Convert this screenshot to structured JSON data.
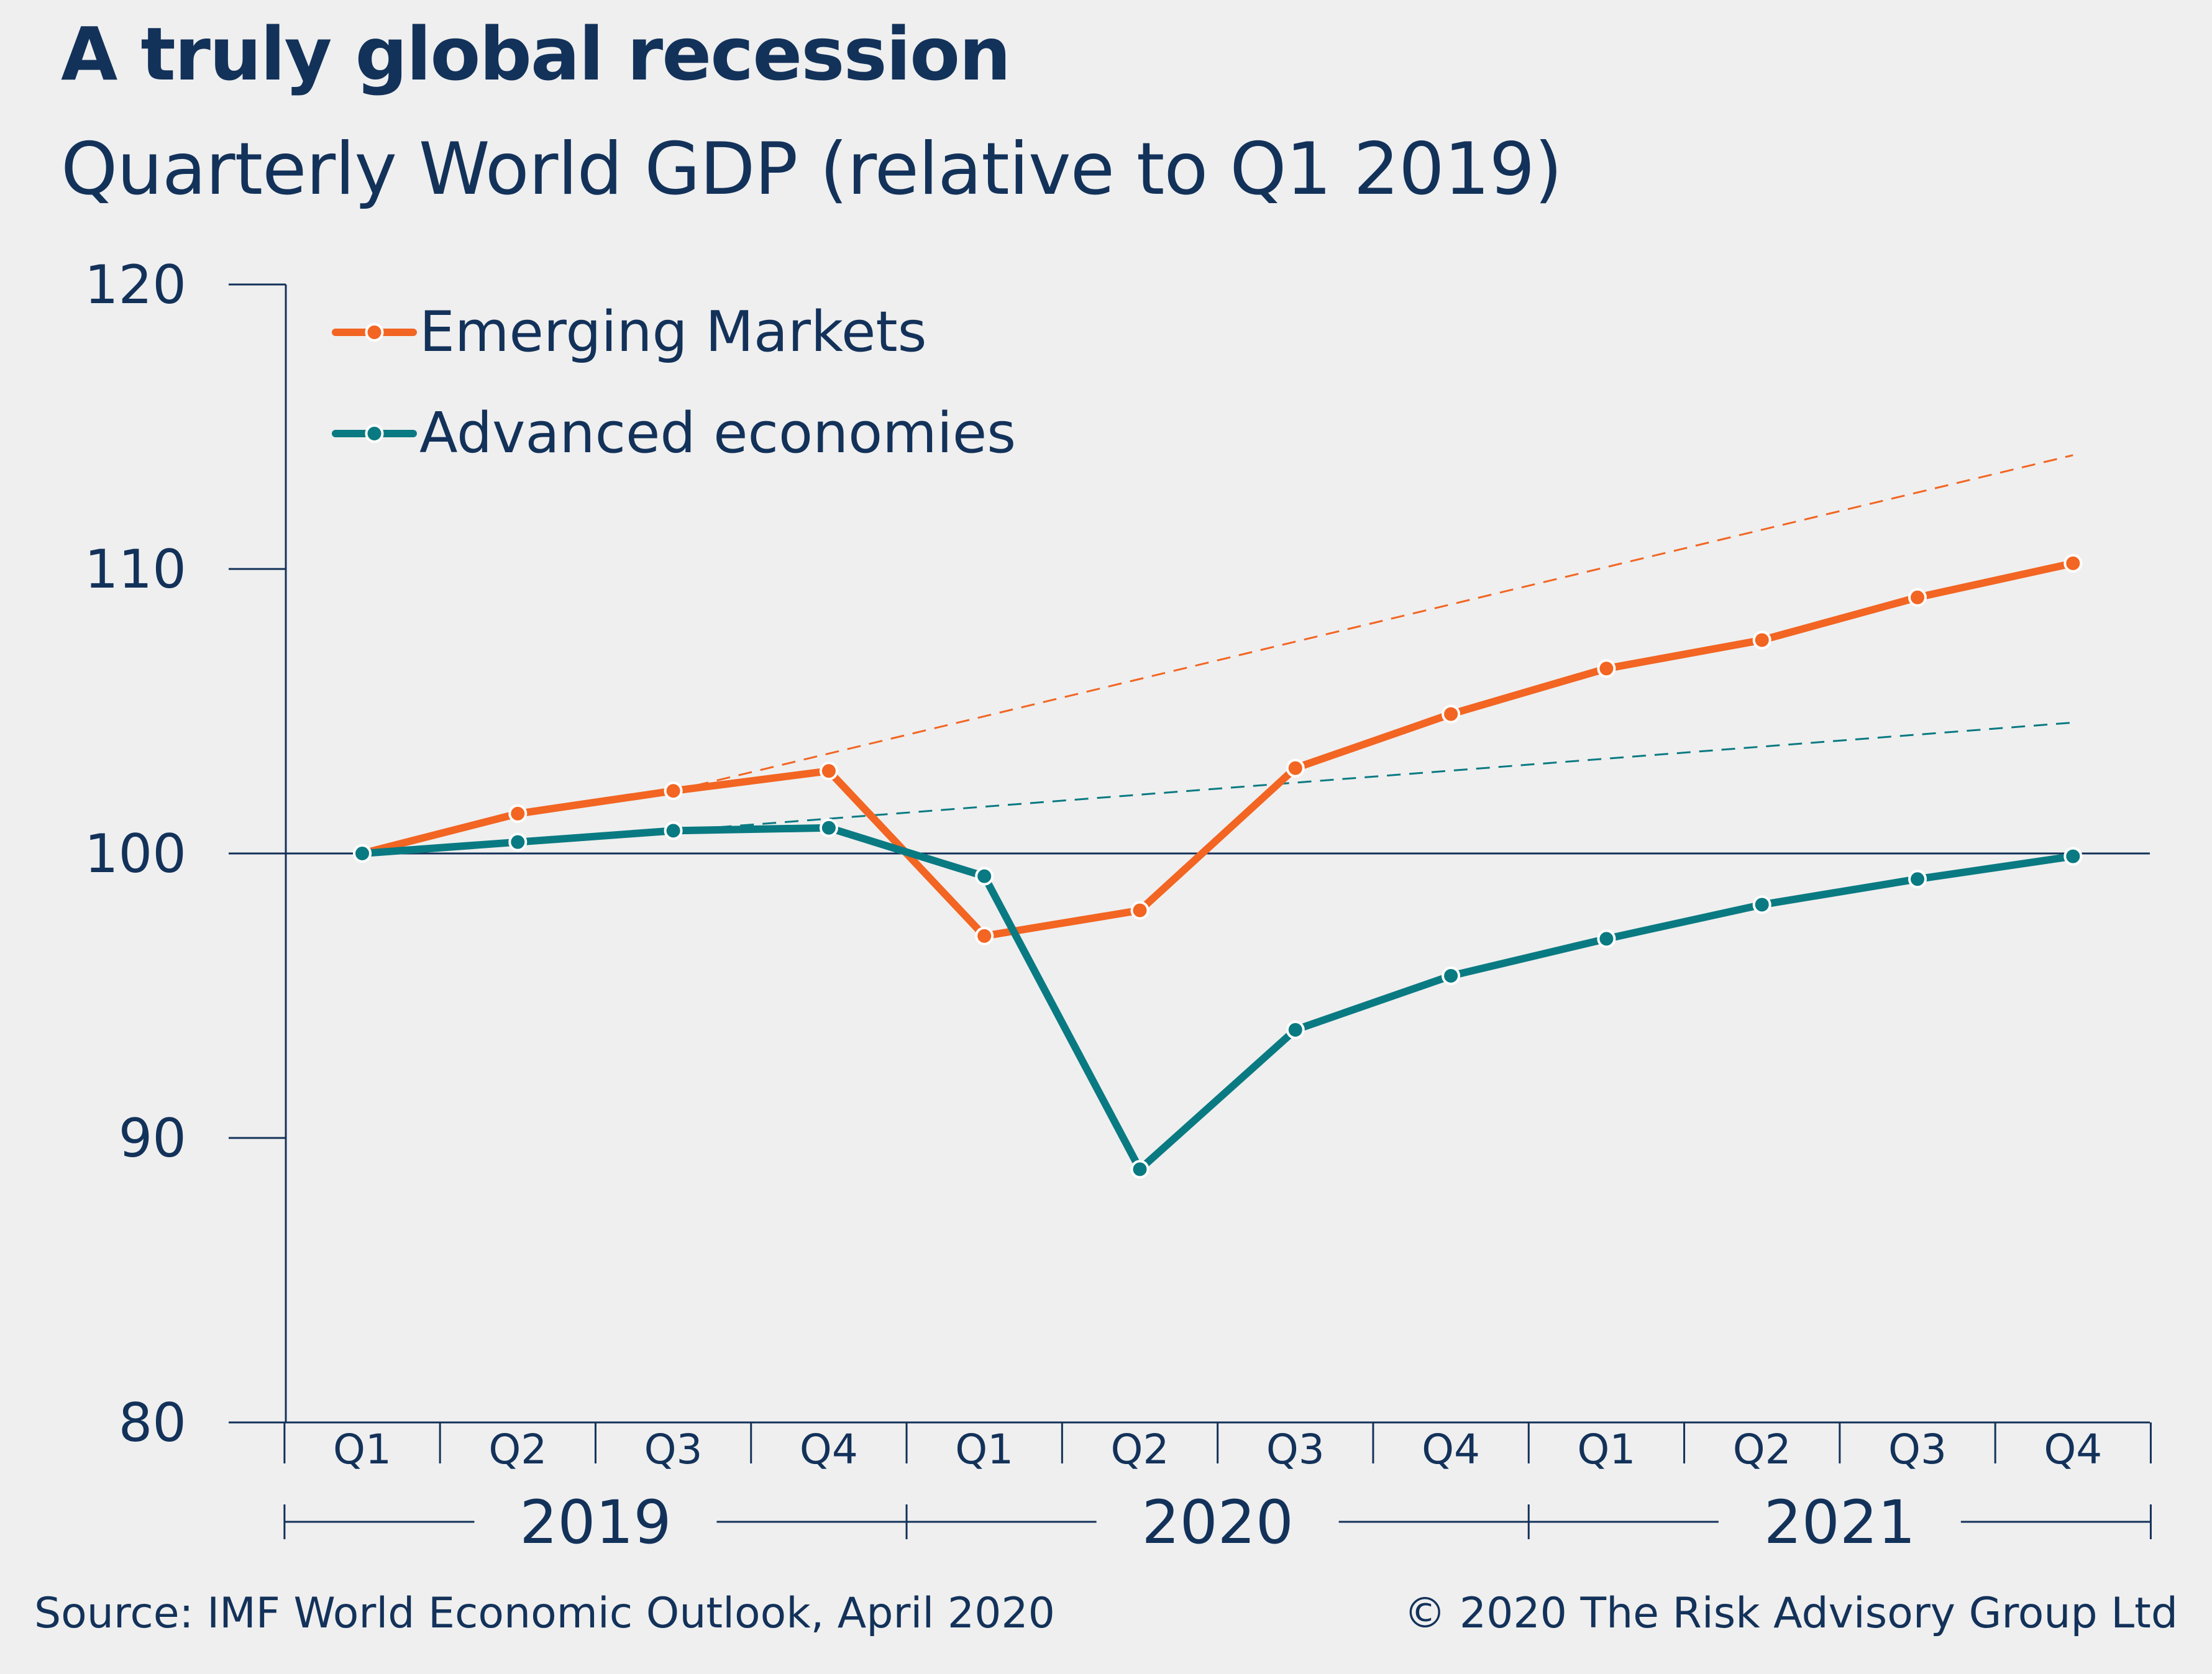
{
  "title": "A truly global recession",
  "subtitle": "Quarterly World GDP (relative to Q1 2019)",
  "source": "Source: IMF World Economic Outlook, April 2020",
  "copyright": "© 2020 The Risk Advisory Group Ltd",
  "colors": {
    "emerging": "#f26522",
    "advanced": "#0a7a82",
    "text": "#13325a",
    "background": "#efefef"
  },
  "chart_data": {
    "type": "line",
    "title": "A truly global recession",
    "subtitle": "Quarterly World GDP (relative to Q1 2019)",
    "xlabel": "",
    "ylabel": "",
    "ylim": [
      80,
      120
    ],
    "yticks": [
      80,
      90,
      100,
      110,
      120
    ],
    "ytick_labels": [
      "80",
      "90",
      "100",
      "110",
      "120"
    ],
    "reference_line": 100,
    "categories": [
      "Q1",
      "Q2",
      "Q3",
      "Q4",
      "Q1",
      "Q2",
      "Q3",
      "Q4",
      "Q1",
      "Q2",
      "Q3",
      "Q4"
    ],
    "year_groups": [
      {
        "label": "2019",
        "count": 4
      },
      {
        "label": "2020",
        "count": 4
      },
      {
        "label": "2021",
        "count": 4
      }
    ],
    "legend_position": "top-left",
    "series": [
      {
        "name": "Emerging Markets",
        "key": "emerging",
        "values": [
          100,
          101.4,
          102.2,
          102.9,
          97.1,
          98.0,
          103.0,
          104.9,
          106.5,
          107.5,
          109.0,
          110.2
        ]
      },
      {
        "name": "Advanced economies",
        "key": "advanced",
        "values": [
          100,
          100.4,
          100.8,
          100.9,
          99.2,
          88.9,
          93.8,
          95.7,
          97.0,
          98.2,
          99.1,
          99.9
        ]
      }
    ],
    "trend_lines": [
      {
        "name": "Emerging Markets pre-crisis trend",
        "key": "emerging",
        "start_index": 2,
        "end_index": 11,
        "start_value": 102.2,
        "end_value": 114.0
      },
      {
        "name": "Advanced economies pre-crisis trend",
        "key": "advanced",
        "start_index": 2,
        "end_index": 11,
        "start_value": 100.8,
        "end_value": 104.6
      }
    ]
  }
}
